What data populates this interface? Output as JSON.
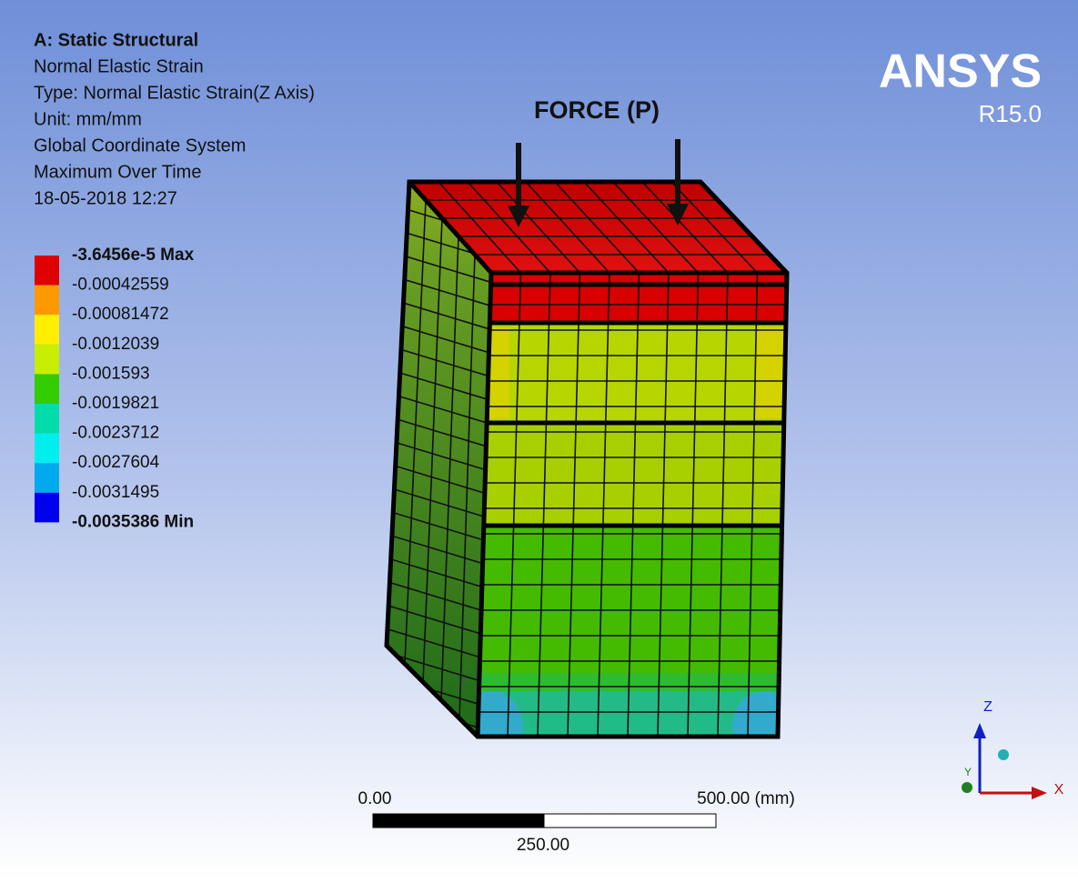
{
  "header": {
    "title": "A: Static Structural",
    "lines": [
      "Normal Elastic Strain",
      "Type: Normal Elastic Strain(Z Axis)",
      "Unit: mm/mm",
      "Global Coordinate System",
      "Maximum Over Time",
      "18-05-2018 12:27"
    ]
  },
  "legend": {
    "entries": [
      "-3.6456e-5 Max",
      "-0.00042559",
      "-0.00081472",
      "-0.0012039",
      "-0.001593",
      "-0.0019821",
      "-0.0023712",
      "-0.0027604",
      "-0.0031495",
      "-0.0035386 Min"
    ],
    "colors": [
      "#e00000",
      "#ff9900",
      "#ffee00",
      "#c8ee00",
      "#33cc00",
      "#00ddaa",
      "#00eeee",
      "#00aaee",
      "#0000ee"
    ]
  },
  "logo": {
    "name": "ANSYS",
    "version": "R15.0"
  },
  "annotation": "FORCE (P)",
  "scale_bar": {
    "start": "0.00",
    "end": "500.00 (mm)",
    "middle": "250.00"
  },
  "triad": {
    "z": "Z",
    "y": "Y",
    "x": "X"
  }
}
